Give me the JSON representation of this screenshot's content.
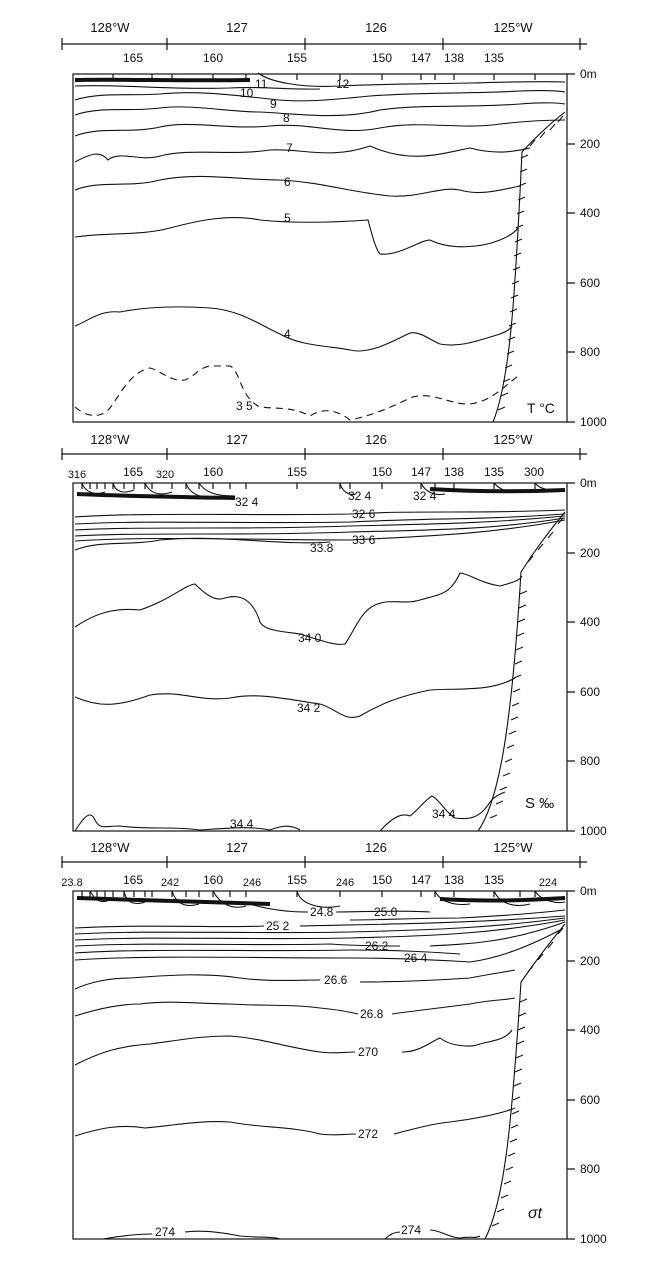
{
  "depth_axis": {
    "unit": "m",
    "ticks": [
      {
        "value": 0,
        "label": "0m"
      },
      {
        "value": 200,
        "label": "200"
      },
      {
        "value": 400,
        "label": "400"
      },
      {
        "value": 600,
        "label": "600"
      },
      {
        "value": 800,
        "label": "800"
      },
      {
        "value": 1000,
        "label": "1000"
      }
    ]
  },
  "longitude_labels": [
    "128°W",
    "127",
    "126",
    "125°W"
  ],
  "station_labels": [
    "165",
    "160",
    "155",
    "150",
    "147",
    "138",
    "135"
  ],
  "panels": [
    {
      "id": "temperature",
      "variable_label": "T °C",
      "top_station_labels": [
        "165",
        "160",
        "155",
        "150",
        "147",
        "138",
        "135"
      ],
      "contours": [
        {
          "label": "12",
          "value": 12
        },
        {
          "label": "11",
          "value": 11
        },
        {
          "label": "10",
          "value": 10
        },
        {
          "label": "9",
          "value": 9
        },
        {
          "label": "8",
          "value": 8
        },
        {
          "label": "7",
          "value": 7
        },
        {
          "label": "6",
          "value": 6
        },
        {
          "label": "5",
          "value": 5
        },
        {
          "label": "4",
          "value": 4
        },
        {
          "label": "3 5",
          "value": 3.5
        }
      ]
    },
    {
      "id": "salinity",
      "variable_label": "S ‰",
      "top_station_labels": [
        "316",
        "165",
        "320",
        "160",
        "155",
        "150",
        "147",
        "138",
        "135",
        "300"
      ],
      "contours": [
        {
          "label": "32 4",
          "value": 32.4
        },
        {
          "label": "32 4",
          "value": 32.4
        },
        {
          "label": "32 4",
          "value": 32.4
        },
        {
          "label": "32 6",
          "value": 32.6
        },
        {
          "label": "33 6",
          "value": 33.6
        },
        {
          "label": "33.8",
          "value": 33.8
        },
        {
          "label": "34 0",
          "value": 34.0
        },
        {
          "label": "34 2",
          "value": 34.2
        },
        {
          "label": "34 4",
          "value": 34.4
        },
        {
          "label": "34 4",
          "value": 34.4
        }
      ]
    },
    {
      "id": "sigma_t",
      "variable_label": "σt",
      "top_station_labels": [
        "23.8",
        "165",
        "242",
        "160",
        "246",
        "155",
        "246",
        "150",
        "147",
        "138",
        "135",
        "224"
      ],
      "contours": [
        {
          "label": "24.8",
          "value": 24.8
        },
        {
          "label": "25.0",
          "value": 25.0
        },
        {
          "label": "25 2",
          "value": 25.2
        },
        {
          "label": "26.2",
          "value": 26.2
        },
        {
          "label": "26 4",
          "value": 26.4
        },
        {
          "label": "26.6",
          "value": 26.6
        },
        {
          "label": "26.8",
          "value": 26.8
        },
        {
          "label": "270",
          "value": 27.0
        },
        {
          "label": "272",
          "value": 27.2
        },
        {
          "label": "274",
          "value": 27.4
        },
        {
          "label": "274",
          "value": 27.4
        }
      ]
    }
  ]
}
